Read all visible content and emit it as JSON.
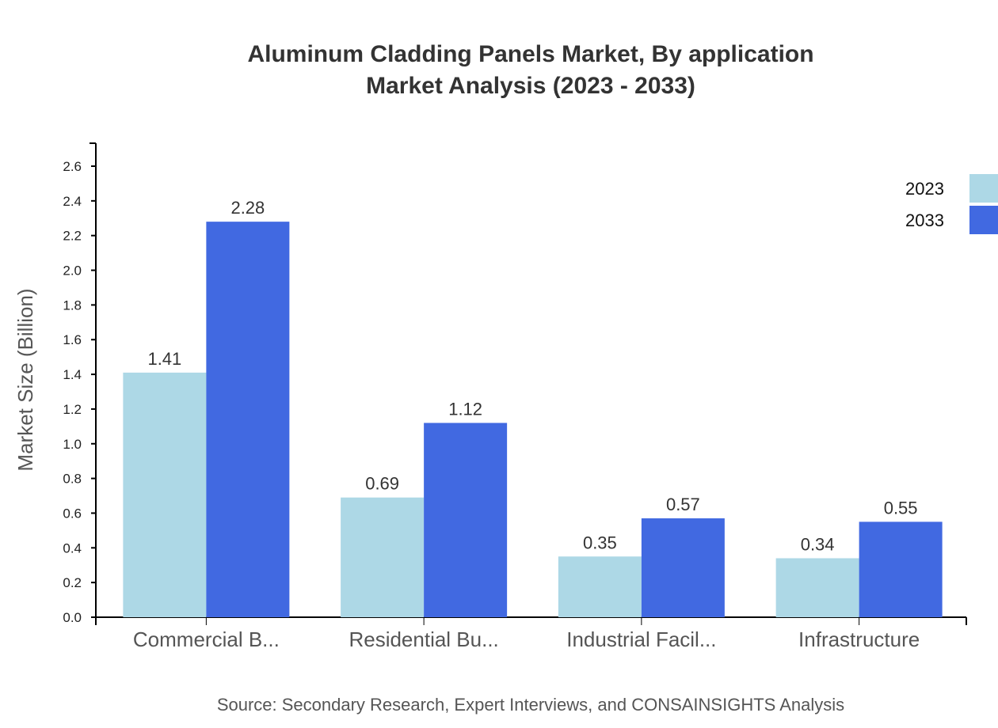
{
  "chart_data": {
    "type": "bar",
    "title": "Aluminum Cladding Panels Market, By application",
    "subtitle": "Market Analysis (2023 - 2033)",
    "xlabel": "",
    "ylabel": "Market Size (Billion)",
    "ylim": [
      0,
      2.7
    ],
    "yticks": [
      "0.0",
      "0.2",
      "0.4",
      "0.6",
      "0.8",
      "1.0",
      "1.2",
      "1.4",
      "1.6",
      "1.8",
      "2.0",
      "2.2",
      "2.4",
      "2.6"
    ],
    "categories": [
      "Commercial B...",
      "Residential Bu...",
      "Industrial Facil...",
      "Infrastructure"
    ],
    "series": [
      {
        "name": "2023",
        "color": "#add8e6",
        "values": [
          1.41,
          0.69,
          0.35,
          0.34
        ]
      },
      {
        "name": "2033",
        "color": "#4169e1",
        "values": [
          2.28,
          1.12,
          0.57,
          0.55
        ]
      }
    ],
    "grid": false,
    "legend_position": "top-right",
    "source": "Source: Secondary Research, Expert Interviews, and CONSAINSIGHTS Analysis"
  }
}
